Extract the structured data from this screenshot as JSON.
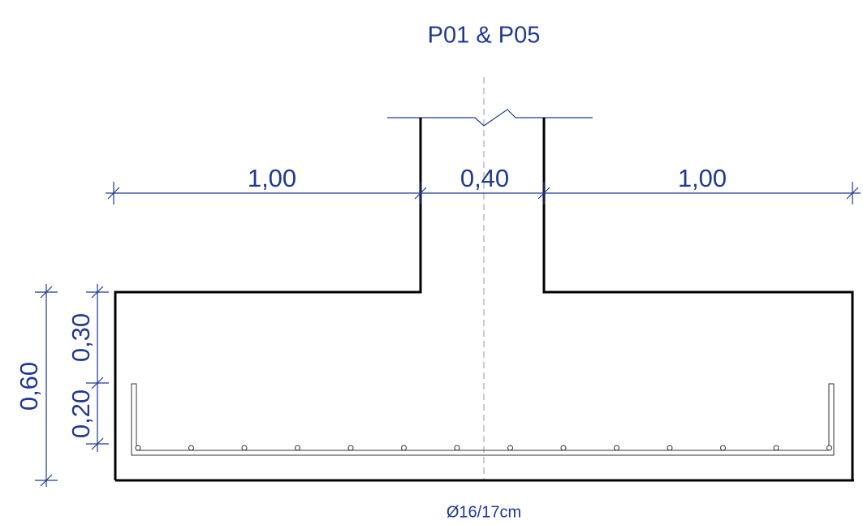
{
  "header": {
    "title": "P01 & P05"
  },
  "dimensions": {
    "horizontal": [
      "1,00",
      "0,40",
      "1,00"
    ],
    "vertical_total": "0,60",
    "vertical_parts": [
      "0,30",
      "0,20"
    ]
  },
  "rebar": {
    "label": "Ø16/17cm"
  }
}
